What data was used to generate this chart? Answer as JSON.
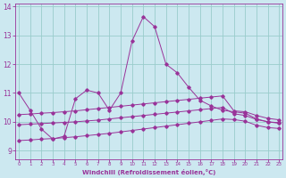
{
  "title": "",
  "xlabel": "Windchill (Refroidissement éolien,°C)",
  "bg_color": "#cce8f0",
  "line_color": "#993399",
  "grid_color": "#99cccc",
  "x_ticks": [
    0,
    1,
    2,
    3,
    4,
    5,
    6,
    7,
    8,
    9,
    10,
    11,
    12,
    13,
    14,
    15,
    16,
    17,
    18,
    19,
    20,
    21,
    22,
    23
  ],
  "y_ticks": [
    9,
    10,
    11,
    12,
    13,
    14
  ],
  "xlim": [
    -0.3,
    23.3
  ],
  "ylim": [
    8.7,
    14.1
  ],
  "lines": [
    {
      "x": [
        0,
        1,
        2,
        3,
        4,
        5,
        6,
        7,
        8,
        9,
        10,
        11,
        12,
        13,
        14,
        15,
        16,
        17,
        18,
        19,
        20,
        21,
        22,
        23
      ],
      "y": [
        11.0,
        10.4,
        9.75,
        9.4,
        9.5,
        10.8,
        11.1,
        11.0,
        10.4,
        11.0,
        12.8,
        13.65,
        13.3,
        12.0,
        11.7,
        11.2,
        10.75,
        10.55,
        10.4,
        10.35,
        10.3,
        10.1,
        10.0,
        9.95
      ]
    },
    {
      "x": [
        0,
        1,
        2,
        3,
        4,
        5,
        6,
        7,
        8,
        9,
        10,
        11,
        12,
        13,
        14,
        15,
        16,
        17,
        18,
        19,
        20,
        21,
        22,
        23
      ],
      "y": [
        10.25,
        10.27,
        10.3,
        10.32,
        10.35,
        10.38,
        10.42,
        10.46,
        10.5,
        10.54,
        10.58,
        10.62,
        10.66,
        10.7,
        10.74,
        10.78,
        10.82,
        10.86,
        10.9,
        10.38,
        10.35,
        10.22,
        10.12,
        10.07
      ]
    },
    {
      "x": [
        0,
        1,
        2,
        3,
        4,
        5,
        6,
        7,
        8,
        9,
        10,
        11,
        12,
        13,
        14,
        15,
        16,
        17,
        18,
        19,
        20,
        21,
        22,
        23
      ],
      "y": [
        9.9,
        9.92,
        9.94,
        9.96,
        9.98,
        10.0,
        10.03,
        10.06,
        10.1,
        10.14,
        10.18,
        10.22,
        10.26,
        10.3,
        10.34,
        10.38,
        10.42,
        10.46,
        10.5,
        10.28,
        10.22,
        10.08,
        10.0,
        9.97
      ]
    },
    {
      "x": [
        0,
        1,
        2,
        3,
        4,
        5,
        6,
        7,
        8,
        9,
        10,
        11,
        12,
        13,
        14,
        15,
        16,
        17,
        18,
        19,
        20,
        21,
        22,
        23
      ],
      "y": [
        9.35,
        9.37,
        9.4,
        9.42,
        9.45,
        9.48,
        9.52,
        9.56,
        9.6,
        9.65,
        9.7,
        9.75,
        9.8,
        9.85,
        9.9,
        9.95,
        10.0,
        10.05,
        10.1,
        10.08,
        10.02,
        9.88,
        9.8,
        9.77
      ]
    }
  ]
}
